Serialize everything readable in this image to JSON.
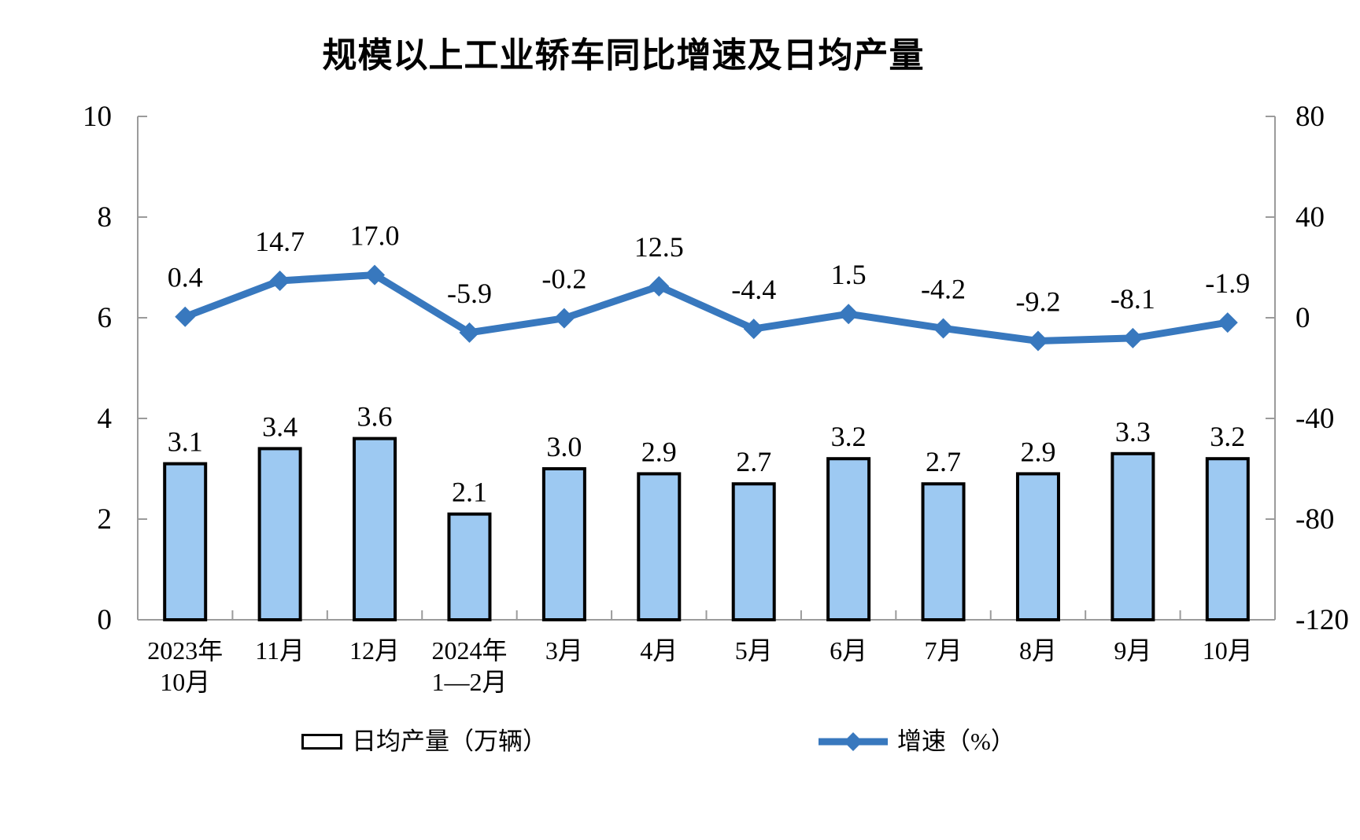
{
  "title": "规模以上工业轿车同比增速及日均产量",
  "legend": {
    "bar_label": "日均产量（万辆）",
    "line_label": "增速（%）"
  },
  "colors": {
    "bar_fill": "#9DC9F2",
    "bar_border": "#000000",
    "line": "#3878BE",
    "axis": "#9B9B9B",
    "text": "#000000"
  },
  "chart_data": {
    "type": "bar",
    "subtype": "bar-line-combo",
    "title": "规模以上工业轿车同比增速及日均产量",
    "categories": [
      [
        "2023年",
        "10月"
      ],
      [
        "11月"
      ],
      [
        "12月"
      ],
      [
        "2024年",
        "1—2月"
      ],
      [
        "3月"
      ],
      [
        "4月"
      ],
      [
        "5月"
      ],
      [
        "6月"
      ],
      [
        "7月"
      ],
      [
        "8月"
      ],
      [
        "9月"
      ],
      [
        "10月"
      ]
    ],
    "series": [
      {
        "name": "日均产量（万辆）",
        "type": "bar",
        "axis": "left",
        "values": [
          3.1,
          3.4,
          3.6,
          2.1,
          3.0,
          2.9,
          2.7,
          3.2,
          2.7,
          2.9,
          3.3,
          3.2
        ]
      },
      {
        "name": "增速（%）",
        "type": "line",
        "axis": "right",
        "values": [
          0.4,
          14.7,
          17.0,
          -5.9,
          -0.2,
          12.5,
          -4.4,
          1.5,
          -4.2,
          -9.2,
          -8.1,
          -1.9
        ]
      }
    ],
    "left_axis": {
      "min": 0,
      "max": 10,
      "ticks": [
        0,
        2,
        4,
        6,
        8,
        10
      ]
    },
    "right_axis": {
      "min": -120,
      "max": 80,
      "ticks": [
        -120,
        -80,
        -40,
        0,
        40,
        80
      ]
    },
    "grid": false,
    "legend_position": "bottom",
    "data_labels": true
  }
}
